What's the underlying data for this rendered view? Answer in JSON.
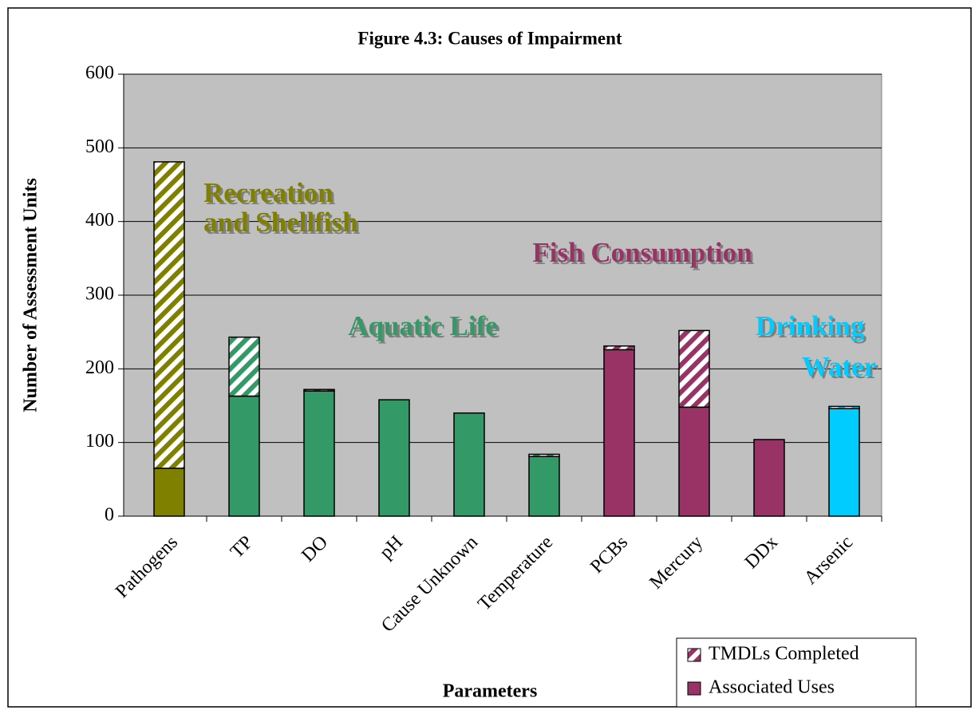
{
  "chart_data": {
    "type": "stacked_bar",
    "title": "Figure 4.3: Causes of Impairment",
    "x_label": "Parameters",
    "y_label": "Number of Assessment Units",
    "categories": [
      "Pathogens",
      "TP",
      "DO",
      "pH",
      "Cause Unknown",
      "Temperature",
      "PCBs",
      "Mercury",
      "DDx",
      "Arsenic"
    ],
    "bar_colors": [
      "#808000",
      "#339966",
      "#339966",
      "#339966",
      "#339966",
      "#339966",
      "#993366",
      "#993366",
      "#993366",
      "#00ccff"
    ],
    "series": [
      {
        "name": "Associated Uses",
        "color": "#993366",
        "pattern": "solid",
        "values": [
          65,
          163,
          170,
          158,
          140,
          81,
          226,
          148,
          104,
          146
        ]
      },
      {
        "name": "TMDLs Completed",
        "color": "#993366",
        "pattern": "hatch",
        "values": [
          416,
          80,
          2,
          0,
          0,
          3,
          5,
          104,
          0,
          3
        ]
      }
    ],
    "legend_order": [
      1,
      0
    ],
    "ylim": [
      0,
      600
    ],
    "yticks": [
      0,
      100,
      200,
      300,
      400,
      500,
      600
    ],
    "grid": true,
    "annotations": [
      {
        "lines": [
          "Recreation",
          "and Shellfish"
        ],
        "color": "#808000"
      },
      {
        "lines": [
          "Fish Consumption"
        ],
        "color": "#993366"
      },
      {
        "lines": [
          "Aquatic Life"
        ],
        "color": "#339966"
      },
      {
        "lines": [
          "Drinking",
          "Water"
        ],
        "color": "#00ccff"
      }
    ]
  }
}
